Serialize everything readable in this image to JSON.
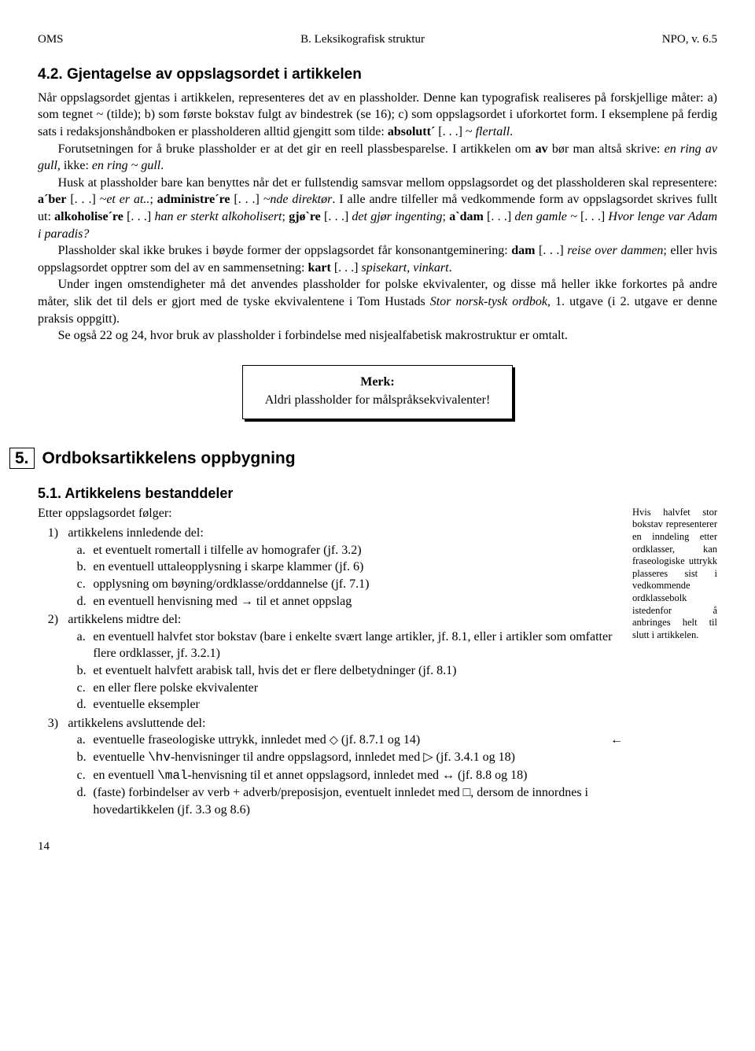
{
  "header": {
    "left": "OMS",
    "center": "B. Leksikografisk struktur",
    "right": "NPO, v. 6.5"
  },
  "sec42": {
    "title": "4.2. Gjentagelse av oppslagsordet i artikkelen",
    "p1_a": "Når oppslagsordet gjentas i artikkelen, representeres det av en plassholder. Denne kan typografisk realiseres på forskjellige måter: a) som tegnet ~ (tilde); b) som første bokstav fulgt av bindestrek (se 16); c) som oppslagsordet i uforkortet form. I eksemplene på ferdig sats i redaksjonshåndboken er plassholderen alltid gjengitt som tilde: ",
    "p1_b": "absolutt´",
    "p1_c": " [. . .] ~ ",
    "p1_d": "flertall",
    "p1_e": ".",
    "p2_a": "Forutsetningen for å bruke plassholder er at det gir en reell plassbesparelse. I artikkelen om ",
    "p2_b": "av",
    "p2_c": " bør man altså skrive: ",
    "p2_d": "en ring av gull",
    "p2_e": ", ikke: ",
    "p2_f": "en ring ~ gull",
    "p2_g": ".",
    "p3_a": "Husk at plassholder bare kan benyttes når det er fullstendig samsvar mellom oppslagsordet og det plassholderen skal representere: ",
    "p3_b": "a´ber",
    "p3_c": " [. . .] ",
    "p3_d": "~et er at..",
    "p3_e": "; ",
    "p3_f": "administre´re",
    "p3_g": " [. . .] ",
    "p3_h": "~nde direktør",
    "p3_i": ". I alle andre tilfeller må vedkommende form av oppslagsordet skrives fullt ut: ",
    "p3_j": "alkoholise´re",
    "p3_k": " [. . .] ",
    "p3_l": "han er sterkt alkoholisert",
    "p3_m": "; ",
    "p3_n": "gjø`re",
    "p3_o": " [. . .] ",
    "p3_p": "det gjør ingenting",
    "p3_q": "; ",
    "p3_r": "a`dam",
    "p3_s": " [. . .] ",
    "p3_t": "den gamle ~",
    "p3_u": " [. . .] ",
    "p3_v": "Hvor lenge var Adam i paradis?",
    "p4_a": "Plassholder skal ikke brukes i bøyde former der oppslagsordet får konsonantgeminering: ",
    "p4_b": "dam",
    "p4_c": " [. . .] ",
    "p4_d": "reise over dammen",
    "p4_e": "; eller hvis oppslagsordet opptrer som del av en sammensetning: ",
    "p4_f": "kart",
    "p4_g": " [. . .] ",
    "p4_h": "spisekart, vinkart",
    "p4_i": ".",
    "p5_a": "Under ingen omstendigheter må det anvendes plassholder for polske ekvivalenter, og disse må heller ikke forkortes på andre måter, slik det til dels er gjort med de tyske ekvivalentene i Tom Hustads ",
    "p5_b": "Stor norsk-tysk ordbok",
    "p5_c": ", 1. utgave (i 2. utgave er denne praksis oppgitt).",
    "p6": "Se også 22 og 24, hvor bruk av plassholder i forbindelse med nisjealfabetisk makrostruktur er omtalt."
  },
  "notebox": {
    "title": "Merk:",
    "body": "Aldri plassholder for målspråksekvivalenter!"
  },
  "sec5": {
    "num": "5.",
    "title": "Ordboksartikkelens oppbygning",
    "sub51": "5.1. Artikkelens bestanddeler",
    "lead": "Etter oppslagsordet følger:",
    "l1": "artikkelens innledende del:",
    "l1a": "et eventuelt romertall i tilfelle av homografer (jf. 3.2)",
    "l1b": "en eventuell uttaleopplysning i skarpe klammer (jf. 6)",
    "l1c": "opplysning om bøyning/ordklasse/orddannelse (jf. 7.1)",
    "l1d": "en eventuell henvisning med → til et annet oppslag",
    "l2": "artikkelens midtre del:",
    "l2a": "en eventuell halvfet stor bokstav (bare i enkelte svært lange artikler, jf. 8.1, eller i artikler som omfatter flere ordklasser, jf. 3.2.1)",
    "l2b": "et eventuelt halvfett arabisk tall, hvis det er flere delbetydninger (jf. 8.1)",
    "l2c": "en eller flere polske ekvivalenter",
    "l2d": "eventuelle eksempler",
    "l3": "artikkelens avsluttende del:",
    "l3a_a": "eventuelle fraseologiske uttrykk, innledet med ",
    "l3a_b": " (jf. 8.7.1 og 14)",
    "l3a_arrow": "←",
    "l3b_a": "eventuelle ",
    "l3b_hv": "\\hv",
    "l3b_b": "-henvisninger til andre oppslagsord, innledet med ▷ (jf. 3.4.1 og 18)",
    "l3c_a": "en eventuell ",
    "l3c_mal": "\\mal",
    "l3c_b": "-henvisning til et annet oppslagsord, innledet med ↔ (jf. 8.8 og 18)",
    "l3d": "(faste) forbindelser av verb + adverb/preposisjon, eventuelt innledet med □, dersom de innordnes i hovedartikkelen (jf. 3.3 og 8.6)"
  },
  "marginnote": "Hvis halvfet stor bokstav representerer en inndeling etter ordklasser, kan fraseologiske uttrykk plasseres sist i vedkommende ordklassebolk istedenfor å anbringes helt til slutt i artikkelen.",
  "pagenum": "14"
}
